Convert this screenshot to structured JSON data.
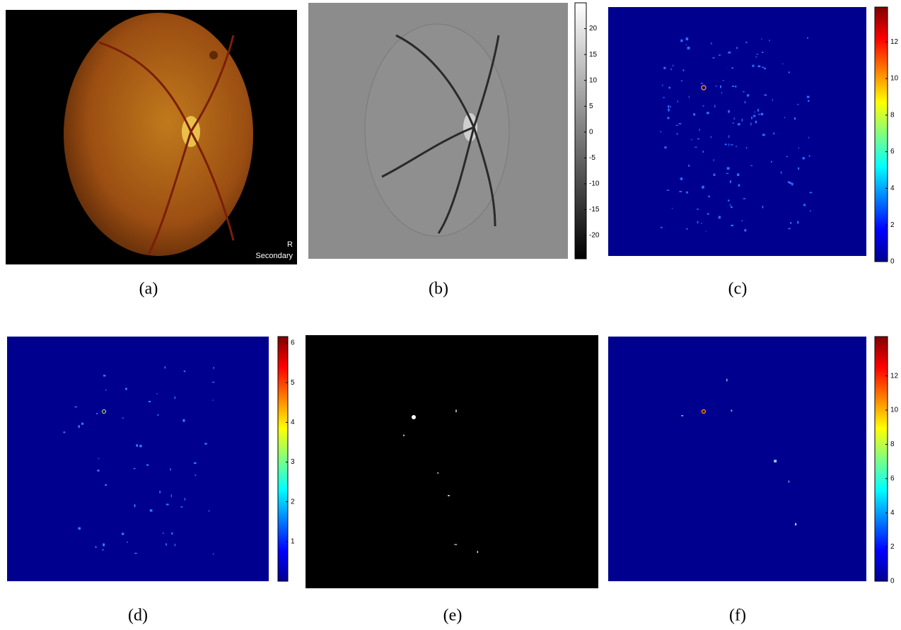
{
  "panels": [
    {
      "caption": "(a)",
      "image_text": [
        "R",
        "Secondary"
      ]
    },
    {
      "caption": "(b)",
      "colorbar": {
        "colormap": "gray",
        "lim": [
          -24.5,
          25
        ],
        "ticks": [
          -20,
          -15,
          -10,
          -5,
          0,
          5,
          10,
          15,
          20
        ]
      }
    },
    {
      "caption": "(c)",
      "colorbar": {
        "colormap": "jet",
        "lim": [
          0,
          13.9
        ],
        "ticks": [
          0,
          2,
          4,
          6,
          8,
          10,
          12
        ]
      }
    },
    {
      "caption": "(d)",
      "colorbar": {
        "colormap": "jet",
        "lim": [
          0,
          6.16
        ],
        "ticks": [
          1,
          2,
          3,
          4,
          5,
          6
        ]
      }
    },
    {
      "caption": "(e)"
    },
    {
      "caption": "(f)",
      "colorbar": {
        "colormap": "jet",
        "lim": [
          0,
          14.3
        ],
        "ticks": [
          0,
          2,
          4,
          6,
          8,
          10,
          12
        ]
      }
    }
  ]
}
